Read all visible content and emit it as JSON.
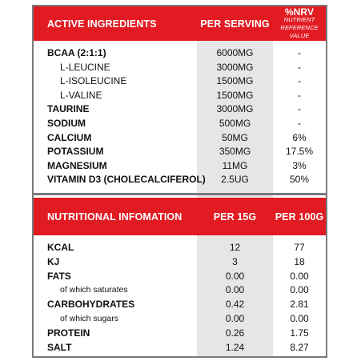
{
  "active": {
    "headers": {
      "ingredient": "ACTIVE INGREDIENTS",
      "serving": "PER SERVING",
      "nrv": "%NRV",
      "nrv_sub": "Nutrient Reference Value"
    },
    "rows": [
      {
        "name": "BCAA (2:1:1)",
        "serving": "6000MG",
        "nrv": "-",
        "style": "bold"
      },
      {
        "name": "L-LEUCINE",
        "serving": "3000MG",
        "nrv": "-",
        "style": "sub"
      },
      {
        "name": "L-ISOLEUCINE",
        "serving": "1500MG",
        "nrv": "-",
        "style": "sub"
      },
      {
        "name": "L-VALINE",
        "serving": "1500MG",
        "nrv": "-",
        "style": "sub"
      },
      {
        "name": "TAURINE",
        "serving": "3000MG",
        "nrv": "-",
        "style": "bold"
      },
      {
        "name": "SODIUM",
        "serving": "500MG",
        "nrv": "-",
        "style": "bold"
      },
      {
        "name": "CALCIUM",
        "serving": "50MG",
        "nrv": "6%",
        "style": "bold"
      },
      {
        "name": "POTASSIUM",
        "serving": "350MG",
        "nrv": "17.5%",
        "style": "bold"
      },
      {
        "name": "MAGNESIUM",
        "serving": "11MG",
        "nrv": "3%",
        "style": "bold"
      },
      {
        "name": "VITAMIN D3 (CHOLECALCIFEROL)",
        "serving": "2.5UG",
        "nrv": "50%",
        "style": "bold"
      }
    ]
  },
  "nutrition": {
    "headers": {
      "info": "NUTRITIONAL INFOMATION",
      "per15": "PER 15G",
      "per100": "PER 100G"
    },
    "rows": [
      {
        "name": "KCAL",
        "per15": "12",
        "per100": "77",
        "style": "bold"
      },
      {
        "name": "KJ",
        "per15": "3",
        "per100": "18",
        "style": "bold"
      },
      {
        "name": "FATS",
        "per15": "0.00",
        "per100": "0.00",
        "style": "bold"
      },
      {
        "name": "of which saturates",
        "per15": "0.00",
        "per100": "0.00",
        "style": "subsm"
      },
      {
        "name": "CARBOHYDRATES",
        "per15": "0.42",
        "per100": "2.81",
        "style": "bold"
      },
      {
        "name": "of which sugars",
        "per15": "0.00",
        "per100": "0.00",
        "style": "subsm"
      },
      {
        "name": "PROTEIN",
        "per15": "0.26",
        "per100": "1.75",
        "style": "bold"
      },
      {
        "name": "SALT",
        "per15": "1.24",
        "per100": "8.27",
        "style": "bold"
      }
    ]
  }
}
